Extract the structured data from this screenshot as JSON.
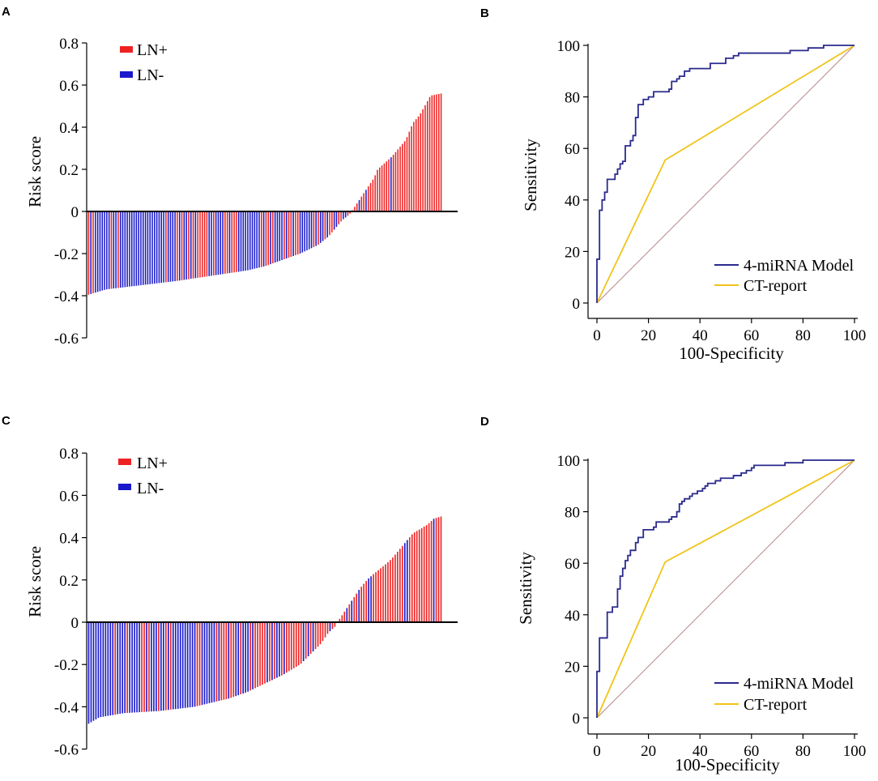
{
  "colors": {
    "ln_pos": "#ee2222",
    "ln_neg": "#1a1acc",
    "model": "#2a2a8e",
    "ct": "#f0c419",
    "diagonal": "#b07a7a",
    "axis": "#000000"
  },
  "chart_data": [
    {
      "panel": "A",
      "type": "bar",
      "ylabel": "Risk score",
      "ylim": [
        -0.6,
        0.8
      ],
      "yticks": [
        "0.8",
        "0.6",
        "0.4",
        "0.2",
        "0",
        "-0.2",
        "-0.4",
        "-0.6"
      ],
      "legend": [
        {
          "name": "LN+",
          "color_key": "ln_pos"
        },
        {
          "name": "LN-",
          "color_key": "ln_neg"
        }
      ],
      "n_samples": 156,
      "ln_pos_fraction": 0.6,
      "series": [
        {
          "name": "Risk score",
          "profile": [
            [
              0,
              -0.395
            ],
            [
              5,
              -0.37
            ],
            [
              15,
              -0.35
            ],
            [
              25,
              -0.33
            ],
            [
              35,
              -0.305
            ],
            [
              45,
              -0.28
            ],
            [
              50,
              -0.26
            ],
            [
              55,
              -0.23
            ],
            [
              60,
              -0.2
            ],
            [
              65,
              -0.16
            ],
            [
              68,
              -0.12
            ],
            [
              70,
              -0.08
            ],
            [
              72,
              -0.04
            ],
            [
              74,
              -0.015
            ],
            [
              75,
              0.01
            ],
            [
              77,
              0.06
            ],
            [
              79,
              0.11
            ],
            [
              81,
              0.16
            ],
            [
              82,
              0.2
            ],
            [
              84,
              0.23
            ],
            [
              86,
              0.26
            ],
            [
              88,
              0.3
            ],
            [
              90,
              0.34
            ],
            [
              91,
              0.38
            ],
            [
              92,
              0.42
            ],
            [
              94,
              0.46
            ],
            [
              96,
              0.52
            ],
            [
              97,
              0.55
            ],
            [
              100,
              0.56
            ]
          ]
        }
      ]
    },
    {
      "panel": "B",
      "type": "line",
      "xlabel": "100-Specificity",
      "ylabel": "Sensitivity",
      "xlim": [
        0,
        100
      ],
      "ylim": [
        0,
        100
      ],
      "xticks": [
        "0",
        "20",
        "40",
        "60",
        "80",
        "100"
      ],
      "yticks": [
        "100",
        "80",
        "60",
        "40",
        "20",
        "0"
      ],
      "series": [
        {
          "name": "4-miRNA Model",
          "color_key": "model",
          "points": [
            [
              0,
              0
            ],
            [
              0,
              17
            ],
            [
              1,
              17
            ],
            [
              1,
              36
            ],
            [
              2,
              36
            ],
            [
              2,
              40
            ],
            [
              3,
              40
            ],
            [
              3,
              43
            ],
            [
              4,
              43
            ],
            [
              4,
              48
            ],
            [
              7,
              48
            ],
            [
              7,
              50
            ],
            [
              8,
              50
            ],
            [
              8,
              52
            ],
            [
              9,
              52
            ],
            [
              9,
              54
            ],
            [
              10,
              54
            ],
            [
              10,
              55
            ],
            [
              11,
              55
            ],
            [
              11,
              61
            ],
            [
              13,
              61
            ],
            [
              13,
              63
            ],
            [
              14,
              63
            ],
            [
              14,
              65
            ],
            [
              15,
              65
            ],
            [
              15,
              72
            ],
            [
              16,
              72
            ],
            [
              16,
              77
            ],
            [
              18,
              77
            ],
            [
              18,
              79
            ],
            [
              20,
              79
            ],
            [
              20,
              80
            ],
            [
              22,
              80
            ],
            [
              22,
              82
            ],
            [
              28,
              82
            ],
            [
              28,
              83
            ],
            [
              29,
              83
            ],
            [
              29,
              86
            ],
            [
              31,
              86
            ],
            [
              31,
              87
            ],
            [
              32,
              87
            ],
            [
              32,
              88
            ],
            [
              34,
              88
            ],
            [
              34,
              90
            ],
            [
              36,
              90
            ],
            [
              36,
              91
            ],
            [
              44,
              91
            ],
            [
              44,
              93
            ],
            [
              50,
              93
            ],
            [
              50,
              95
            ],
            [
              53,
              95
            ],
            [
              53,
              96
            ],
            [
              55,
              96
            ],
            [
              55,
              97
            ],
            [
              75,
              97
            ],
            [
              75,
              98
            ],
            [
              82,
              98
            ],
            [
              82,
              99
            ],
            [
              88,
              99
            ],
            [
              88,
              100
            ],
            [
              100,
              100
            ]
          ]
        },
        {
          "name": "CT-report",
          "color_key": "ct",
          "points": [
            [
              0,
              0
            ],
            [
              26.5,
              55.5
            ],
            [
              100,
              100
            ]
          ]
        },
        {
          "name": "reference",
          "color_key": "diagonal",
          "points": [
            [
              0,
              0
            ],
            [
              100,
              100
            ]
          ]
        }
      ]
    },
    {
      "panel": "C",
      "type": "bar",
      "ylabel": "Risk score",
      "ylim": [
        -0.6,
        0.8
      ],
      "yticks": [
        "0.8",
        "0.6",
        "0.4",
        "0.2",
        "0",
        "-0.2",
        "-0.4",
        "-0.6"
      ],
      "legend": [
        {
          "name": "LN+",
          "color_key": "ln_pos"
        },
        {
          "name": "LN-",
          "color_key": "ln_neg"
        }
      ],
      "n_samples": 147,
      "ln_pos_fraction": 0.6,
      "series": [
        {
          "name": "Risk score",
          "profile": [
            [
              0,
              -0.48
            ],
            [
              3,
              -0.45
            ],
            [
              10,
              -0.43
            ],
            [
              20,
              -0.42
            ],
            [
              30,
              -0.4
            ],
            [
              40,
              -0.36
            ],
            [
              45,
              -0.33
            ],
            [
              50,
              -0.29
            ],
            [
              55,
              -0.25
            ],
            [
              60,
              -0.2
            ],
            [
              63,
              -0.15
            ],
            [
              66,
              -0.1
            ],
            [
              68,
              -0.05
            ],
            [
              70,
              -0.02
            ],
            [
              71,
              0.01
            ],
            [
              73,
              0.06
            ],
            [
              75,
              0.11
            ],
            [
              77,
              0.16
            ],
            [
              79,
              0.2
            ],
            [
              81,
              0.23
            ],
            [
              84,
              0.27
            ],
            [
              86,
              0.3
            ],
            [
              88,
              0.34
            ],
            [
              90,
              0.38
            ],
            [
              92,
              0.42
            ],
            [
              94,
              0.44
            ],
            [
              96,
              0.46
            ],
            [
              98,
              0.49
            ],
            [
              100,
              0.5
            ]
          ]
        }
      ]
    },
    {
      "panel": "D",
      "type": "line",
      "xlabel": "100-Specificity",
      "ylabel": "Sensitivity",
      "xlim": [
        0,
        100
      ],
      "ylim": [
        0,
        100
      ],
      "xticks": [
        "0",
        "20",
        "40",
        "60",
        "80",
        "100"
      ],
      "yticks": [
        "100",
        "80",
        "60",
        "40",
        "20",
        "0"
      ],
      "series": [
        {
          "name": "4-miRNA Model",
          "color_key": "model",
          "points": [
            [
              0,
              0
            ],
            [
              0,
              18
            ],
            [
              1,
              18
            ],
            [
              1,
              31
            ],
            [
              4,
              31
            ],
            [
              4,
              41
            ],
            [
              6,
              41
            ],
            [
              6,
              43
            ],
            [
              8,
              43
            ],
            [
              8,
              50
            ],
            [
              9,
              50
            ],
            [
              9,
              55
            ],
            [
              10,
              55
            ],
            [
              10,
              58
            ],
            [
              11,
              58
            ],
            [
              11,
              61
            ],
            [
              12,
              61
            ],
            [
              12,
              63
            ],
            [
              13,
              63
            ],
            [
              13,
              65
            ],
            [
              15,
              65
            ],
            [
              15,
              68
            ],
            [
              16,
              68
            ],
            [
              16,
              70
            ],
            [
              18,
              70
            ],
            [
              18,
              73
            ],
            [
              22,
              73
            ],
            [
              22,
              74
            ],
            [
              23,
              74
            ],
            [
              23,
              76
            ],
            [
              28,
              76
            ],
            [
              28,
              77
            ],
            [
              29,
              77
            ],
            [
              29,
              78
            ],
            [
              31,
              78
            ],
            [
              31,
              80
            ],
            [
              32,
              80
            ],
            [
              32,
              83
            ],
            [
              33,
              83
            ],
            [
              33,
              84
            ],
            [
              34,
              84
            ],
            [
              34,
              85
            ],
            [
              36,
              85
            ],
            [
              36,
              86
            ],
            [
              37,
              86
            ],
            [
              37,
              87
            ],
            [
              39,
              87
            ],
            [
              39,
              88
            ],
            [
              41,
              88
            ],
            [
              41,
              89
            ],
            [
              42,
              89
            ],
            [
              42,
              90
            ],
            [
              43,
              90
            ],
            [
              43,
              91
            ],
            [
              46,
              91
            ],
            [
              46,
              92
            ],
            [
              48,
              92
            ],
            [
              48,
              93
            ],
            [
              53,
              93
            ],
            [
              53,
              94
            ],
            [
              56,
              94
            ],
            [
              56,
              95
            ],
            [
              58,
              95
            ],
            [
              58,
              96
            ],
            [
              60,
              96
            ],
            [
              60,
              97
            ],
            [
              61,
              97
            ],
            [
              61,
              98
            ],
            [
              73,
              98
            ],
            [
              73,
              99
            ],
            [
              80,
              99
            ],
            [
              80,
              100
            ],
            [
              100,
              100
            ]
          ]
        },
        {
          "name": "CT-report",
          "color_key": "ct",
          "points": [
            [
              0,
              0
            ],
            [
              26.5,
              60.5
            ],
            [
              100,
              100
            ]
          ]
        },
        {
          "name": "reference",
          "color_key": "diagonal",
          "points": [
            [
              0,
              0
            ],
            [
              100,
              100
            ]
          ]
        }
      ]
    }
  ]
}
